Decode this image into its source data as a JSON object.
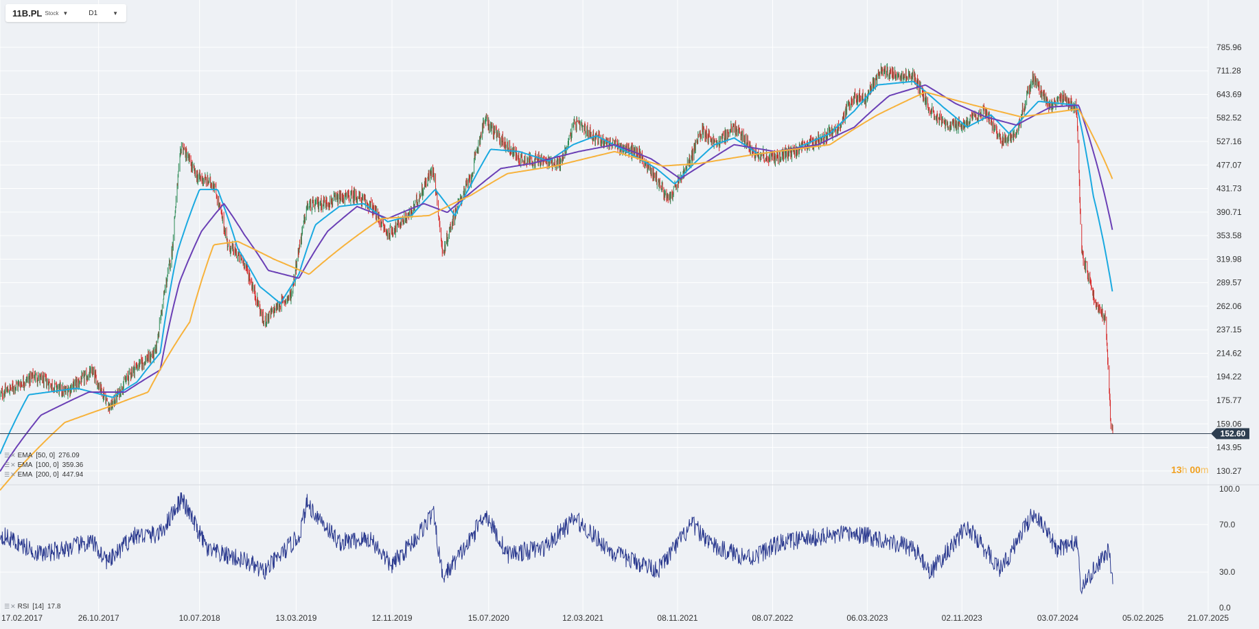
{
  "toolbar": {
    "symbol": "11B.PL",
    "instrument_type": "Stock",
    "timeframe": "D1"
  },
  "indicators": [
    {
      "label": "EMA",
      "params": "[50, 0]",
      "value": "276.09",
      "color": "#1aa9e0"
    },
    {
      "label": "EMA",
      "params": "[100, 0]",
      "value": "359.36",
      "color": "#6a3fb5"
    },
    {
      "label": "EMA",
      "params": "[200, 0]",
      "value": "447.94",
      "color": "#f7b23b"
    }
  ],
  "rsi_legend": {
    "label": "RSI",
    "params": "[14]",
    "value": "17.8"
  },
  "timer": {
    "hours": "13",
    "hours_unit": "h",
    "minutes": "00",
    "minutes_unit": "m"
  },
  "colors": {
    "up_candle": "#2e8b57",
    "down_candle": "#d62828",
    "rsi_line": "#2b3a8f",
    "current_price_bg": "#2d3e50"
  },
  "chart_data": [
    {
      "type": "candlestick",
      "y_scale": "log",
      "ylim": [
        125,
        860
      ],
      "xlim": [
        "2017-02-17",
        "2025-07-21"
      ],
      "grid": true,
      "y_ticks": [
        "785.96",
        "711.28",
        "643.69",
        "582.52",
        "527.16",
        "477.07",
        "431.73",
        "390.71",
        "353.58",
        "319.98",
        "289.57",
        "262.06",
        "237.15",
        "214.62",
        "194.22",
        "175.77",
        "159.06",
        "143.95",
        "130.27"
      ],
      "x_ticks": [
        "17.02.2017",
        "26.10.2017",
        "10.07.2018",
        "13.03.2019",
        "12.11.2019",
        "15.07.2020",
        "12.03.2021",
        "08.11.2021",
        "08.07.2022",
        "06.03.2023",
        "02.11.2023",
        "03.07.2024",
        "05.02.2025",
        "21.07.2025"
      ],
      "current_price": "152.60",
      "price_path": [
        [
          "2017-02-17",
          180
        ],
        [
          "2017-05-15",
          195
        ],
        [
          "2017-08-01",
          182
        ],
        [
          "2017-10-10",
          198
        ],
        [
          "2017-11-25",
          170
        ],
        [
          "2018-01-20",
          200
        ],
        [
          "2018-03-20",
          215
        ],
        [
          "2018-05-01",
          330
        ],
        [
          "2018-05-25",
          520
        ],
        [
          "2018-07-01",
          455
        ],
        [
          "2018-08-15",
          440
        ],
        [
          "2018-09-20",
          340
        ],
        [
          "2018-11-01",
          315
        ],
        [
          "2018-12-20",
          245
        ],
        [
          "2019-02-01",
          265
        ],
        [
          "2019-03-01",
          275
        ],
        [
          "2019-04-10",
          400
        ],
        [
          "2019-06-15",
          410
        ],
        [
          "2019-08-10",
          420
        ],
        [
          "2019-09-20",
          400
        ],
        [
          "2019-11-01",
          355
        ],
        [
          "2020-01-01",
          390
        ],
        [
          "2020-02-25",
          470
        ],
        [
          "2020-03-20",
          325
        ],
        [
          "2020-04-20",
          390
        ],
        [
          "2020-06-01",
          455
        ],
        [
          "2020-07-05",
          580
        ],
        [
          "2020-08-01",
          545
        ],
        [
          "2020-10-01",
          490
        ],
        [
          "2020-12-01",
          485
        ],
        [
          "2021-01-15",
          480
        ],
        [
          "2021-02-20",
          570
        ],
        [
          "2021-04-15",
          535
        ],
        [
          "2021-06-01",
          520
        ],
        [
          "2021-08-01",
          500
        ],
        [
          "2021-09-20",
          445
        ],
        [
          "2021-10-15",
          410
        ],
        [
          "2021-12-01",
          470
        ],
        [
          "2022-01-10",
          555
        ],
        [
          "2022-02-15",
          520
        ],
        [
          "2022-04-01",
          560
        ],
        [
          "2022-05-15",
          510
        ],
        [
          "2022-07-01",
          490
        ],
        [
          "2022-09-01",
          505
        ],
        [
          "2022-11-01",
          530
        ],
        [
          "2022-12-20",
          555
        ],
        [
          "2023-02-01",
          640
        ],
        [
          "2023-03-01",
          630
        ],
        [
          "2023-04-10",
          710
        ],
        [
          "2023-06-01",
          700
        ],
        [
          "2023-07-01",
          695
        ],
        [
          "2023-08-15",
          600
        ],
        [
          "2023-10-01",
          560
        ],
        [
          "2023-11-15",
          570
        ],
        [
          "2024-01-01",
          600
        ],
        [
          "2024-02-10",
          525
        ],
        [
          "2024-03-20",
          545
        ],
        [
          "2024-05-01",
          690
        ],
        [
          "2024-06-10",
          615
        ],
        [
          "2024-07-20",
          630
        ],
        [
          "2024-08-20",
          605
        ],
        [
          "2024-09-01",
          330
        ],
        [
          "2024-10-10",
          262
        ],
        [
          "2024-11-01",
          250
        ],
        [
          "2024-11-15",
          158
        ],
        [
          "2024-11-20",
          152.6
        ]
      ],
      "ema_paths": [
        {
          "name": "EMA 50",
          "points": [
            [
              "2017-02-17",
              140
            ],
            [
              "2017-05-01",
              180
            ],
            [
              "2017-09-01",
              185
            ],
            [
              "2017-12-01",
              178
            ],
            [
              "2018-02-01",
              190
            ],
            [
              "2018-04-01",
              215
            ],
            [
              "2018-05-15",
              330
            ],
            [
              "2018-07-10",
              430
            ],
            [
              "2018-08-25",
              430
            ],
            [
              "2018-10-15",
              335
            ],
            [
              "2018-12-10",
              285
            ],
            [
              "2019-02-01",
              265
            ],
            [
              "2019-03-20",
              300
            ],
            [
              "2019-05-01",
              370
            ],
            [
              "2019-07-01",
              400
            ],
            [
              "2019-09-01",
              405
            ],
            [
              "2019-11-01",
              375
            ],
            [
              "2020-01-01",
              385
            ],
            [
              "2020-03-01",
              430
            ],
            [
              "2020-04-20",
              385
            ],
            [
              "2020-06-01",
              440
            ],
            [
              "2020-07-20",
              510
            ],
            [
              "2020-10-01",
              505
            ],
            [
              "2020-12-15",
              485
            ],
            [
              "2021-02-15",
              520
            ],
            [
              "2021-04-15",
              540
            ],
            [
              "2021-07-01",
              505
            ],
            [
              "2021-09-15",
              470
            ],
            [
              "2021-11-01",
              440
            ],
            [
              "2021-12-20",
              480
            ],
            [
              "2022-02-10",
              520
            ],
            [
              "2022-04-01",
              535
            ],
            [
              "2022-06-01",
              500
            ],
            [
              "2022-09-01",
              510
            ],
            [
              "2022-12-01",
              545
            ],
            [
              "2023-02-01",
              600
            ],
            [
              "2023-04-01",
              670
            ],
            [
              "2023-07-01",
              680
            ],
            [
              "2023-09-15",
              610
            ],
            [
              "2023-11-15",
              560
            ],
            [
              "2024-01-15",
              590
            ],
            [
              "2024-03-01",
              545
            ],
            [
              "2024-05-15",
              625
            ],
            [
              "2024-08-20",
              615
            ],
            [
              "2024-10-01",
              420
            ],
            [
              "2024-11-20",
              276.09
            ]
          ]
        },
        {
          "name": "EMA 100",
          "points": [
            [
              "2017-02-17",
              130
            ],
            [
              "2017-06-01",
              165
            ],
            [
              "2017-10-01",
              182
            ],
            [
              "2018-01-01",
              182
            ],
            [
              "2018-04-01",
              200
            ],
            [
              "2018-05-20",
              290
            ],
            [
              "2018-07-15",
              360
            ],
            [
              "2018-09-10",
              405
            ],
            [
              "2018-11-01",
              355
            ],
            [
              "2019-01-01",
              305
            ],
            [
              "2019-03-20",
              295
            ],
            [
              "2019-06-01",
              360
            ],
            [
              "2019-08-15",
              400
            ],
            [
              "2019-11-01",
              380
            ],
            [
              "2020-02-01",
              405
            ],
            [
              "2020-04-01",
              390
            ],
            [
              "2020-06-01",
              425
            ],
            [
              "2020-08-15",
              470
            ],
            [
              "2020-11-01",
              480
            ],
            [
              "2021-03-01",
              505
            ],
            [
              "2021-06-01",
              520
            ],
            [
              "2021-09-01",
              490
            ],
            [
              "2021-11-15",
              450
            ],
            [
              "2022-01-15",
              480
            ],
            [
              "2022-04-01",
              520
            ],
            [
              "2022-07-15",
              505
            ],
            [
              "2022-11-01",
              520
            ],
            [
              "2023-02-01",
              560
            ],
            [
              "2023-05-01",
              640
            ],
            [
              "2023-08-01",
              670
            ],
            [
              "2023-10-15",
              620
            ],
            [
              "2024-01-01",
              585
            ],
            [
              "2024-03-20",
              565
            ],
            [
              "2024-06-15",
              610
            ],
            [
              "2024-08-25",
              615
            ],
            [
              "2024-11-20",
              359.36
            ]
          ]
        },
        {
          "name": "EMA 200",
          "points": [
            [
              "2017-02-17",
              120
            ],
            [
              "2017-08-01",
              160
            ],
            [
              "2017-12-01",
              172
            ],
            [
              "2018-03-01",
              182
            ],
            [
              "2018-06-15",
              245
            ],
            [
              "2018-08-15",
              340
            ],
            [
              "2018-10-15",
              345
            ],
            [
              "2019-01-15",
              320
            ],
            [
              "2019-04-15",
              300
            ],
            [
              "2019-07-15",
              340
            ],
            [
              "2019-10-15",
              380
            ],
            [
              "2020-02-15",
              385
            ],
            [
              "2020-06-01",
              420
            ],
            [
              "2020-09-01",
              460
            ],
            [
              "2021-01-01",
              475
            ],
            [
              "2021-06-01",
              505
            ],
            [
              "2021-10-01",
              475
            ],
            [
              "2022-01-01",
              480
            ],
            [
              "2022-06-01",
              500
            ],
            [
              "2022-12-01",
              520
            ],
            [
              "2023-04-01",
              590
            ],
            [
              "2023-08-01",
              650
            ],
            [
              "2023-12-01",
              615
            ],
            [
              "2024-04-01",
              585
            ],
            [
              "2024-08-25",
              605
            ],
            [
              "2024-11-20",
              447.94
            ]
          ]
        }
      ]
    },
    {
      "type": "line",
      "series": [
        {
          "name": "RSI",
          "values_path": [
            [
              "2017-02-17",
              62
            ],
            [
              "2017-06-01",
              45
            ],
            [
              "2017-10-10",
              55
            ],
            [
              "2017-11-20",
              38
            ],
            [
              "2018-01-20",
              60
            ],
            [
              "2018-04-01",
              62
            ],
            [
              "2018-05-25",
              92
            ],
            [
              "2018-08-01",
              48
            ],
            [
              "2018-11-01",
              40
            ],
            [
              "2018-12-20",
              30
            ],
            [
              "2019-03-20",
              60
            ],
            [
              "2019-04-10",
              88
            ],
            [
              "2019-07-01",
              55
            ],
            [
              "2019-09-20",
              58
            ],
            [
              "2019-11-10",
              35
            ],
            [
              "2020-01-15",
              60
            ],
            [
              "2020-02-25",
              80
            ],
            [
              "2020-03-20",
              25
            ],
            [
              "2020-06-01",
              58
            ],
            [
              "2020-07-05",
              80
            ],
            [
              "2020-09-01",
              45
            ],
            [
              "2020-12-01",
              50
            ],
            [
              "2021-02-20",
              75
            ],
            [
              "2021-06-01",
              45
            ],
            [
              "2021-09-20",
              32
            ],
            [
              "2021-12-15",
              70
            ],
            [
              "2022-02-15",
              50
            ],
            [
              "2022-05-15",
              42
            ],
            [
              "2022-08-01",
              55
            ],
            [
              "2022-11-15",
              60
            ],
            [
              "2023-02-01",
              62
            ],
            [
              "2023-04-10",
              58
            ],
            [
              "2023-07-01",
              50
            ],
            [
              "2023-08-15",
              30
            ],
            [
              "2023-11-15",
              68
            ],
            [
              "2024-02-10",
              32
            ],
            [
              "2024-05-01",
              80
            ],
            [
              "2024-07-01",
              50
            ],
            [
              "2024-08-20",
              55
            ],
            [
              "2024-09-01",
              15
            ],
            [
              "2024-10-20",
              40
            ],
            [
              "2024-11-10",
              48
            ],
            [
              "2024-11-20",
              17.8
            ]
          ]
        }
      ],
      "ylim": [
        0,
        100
      ],
      "y_ticks": [
        "100.0",
        "70.0",
        "30.0",
        "0.0"
      ],
      "levels": [
        70,
        30
      ]
    }
  ]
}
